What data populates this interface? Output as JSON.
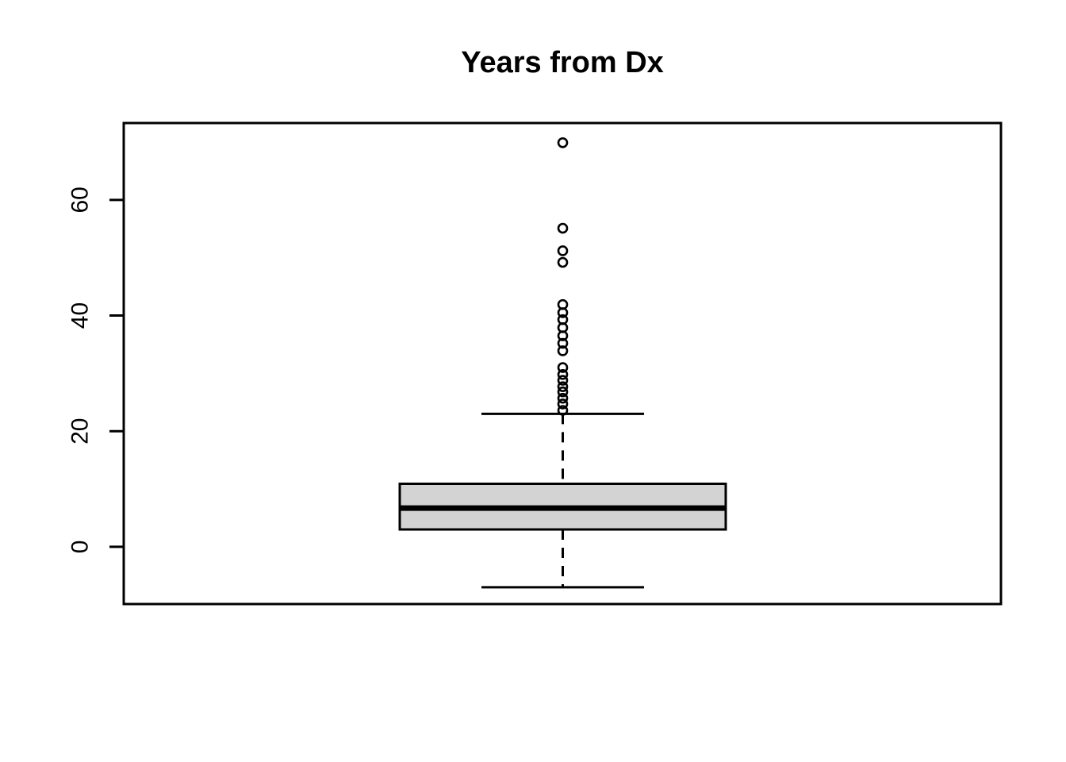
{
  "chart_data": {
    "type": "boxplot",
    "title": "Years from Dx",
    "xlabel": "",
    "ylabel": "",
    "orientation": "vertical",
    "grid": false,
    "legend": "none",
    "y_ticks": [
      0,
      20,
      40,
      60
    ],
    "y_tick_labels": [
      "0",
      "20",
      "40",
      "60"
    ],
    "ylim": [
      -9.9,
      73.3
    ],
    "series": [
      {
        "name": "Years from Dx",
        "whisker_low": -7,
        "q1": 3.0,
        "median": 6.7,
        "q3": 10.9,
        "whisker_high": 23,
        "outliers": [
          69.9,
          55.1,
          51.2,
          49.2,
          41.9,
          40.5,
          39.3,
          37.9,
          36.5,
          35.2,
          33.9,
          31.0,
          29.8,
          28.8,
          27.7,
          26.8,
          25.7,
          24.7,
          23.6
        ]
      }
    ],
    "colors": {
      "box_fill": "#d3d3d3",
      "stroke": "#000000",
      "background": "#ffffff"
    }
  }
}
